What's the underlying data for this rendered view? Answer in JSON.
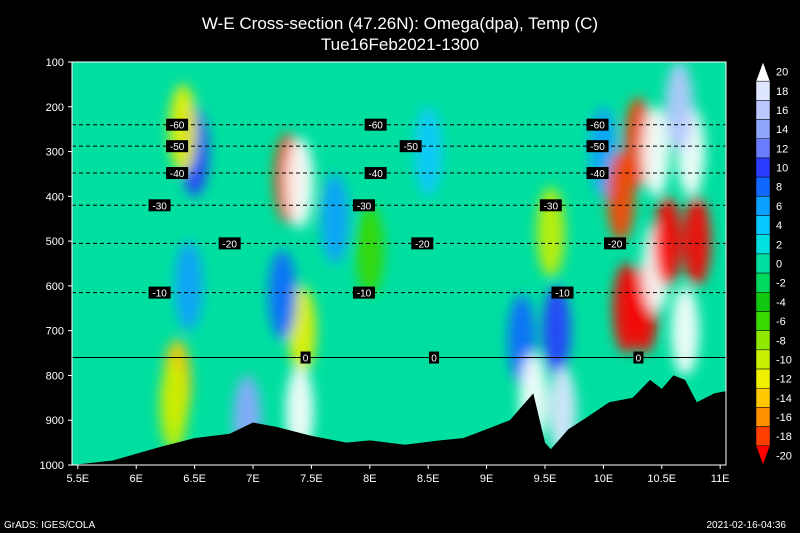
{
  "chart_data": {
    "type": "heatmap",
    "title": "W-E Cross-section (47.26N): Omega(dpa), Temp (C)",
    "subtitle": "Tue16Feb2021-1300",
    "x_ticks": [
      "5.5E",
      "6E",
      "6.5E",
      "7E",
      "7.5E",
      "8E",
      "8.5E",
      "9E",
      "9.5E",
      "10E",
      "10.5E",
      "11E"
    ],
    "x_range": [
      5.45,
      11.05
    ],
    "y_ticks": [
      "100",
      "200",
      "300",
      "400",
      "500",
      "600",
      "700",
      "800",
      "900",
      "1000"
    ],
    "y_range": [
      1000,
      100
    ],
    "colorbar": {
      "levels": [
        "20",
        "18",
        "16",
        "14",
        "12",
        "10",
        "8",
        "6",
        "4",
        "2",
        "0",
        "-2",
        "-4",
        "-6",
        "-8",
        "-10",
        "-12",
        "-14",
        "-16",
        "-18",
        "-20"
      ],
      "colors": [
        "#ffffff",
        "#dfe6ff",
        "#bac8ff",
        "#8fa6ff",
        "#6a7dff",
        "#2a3bff",
        "#1068ff",
        "#0aa0ff",
        "#08c8ff",
        "#00e0e0",
        "#00dfa0",
        "#00d860",
        "#10c810",
        "#38d800",
        "#90e800",
        "#c8f000",
        "#f0f000",
        "#ffc800",
        "#ff9000",
        "#ff4000",
        "#ff0000"
      ]
    },
    "temperature_contours": [
      {
        "label": "-60",
        "p": 240,
        "label_x": [
          6.35,
          8.05,
          9.95
        ]
      },
      {
        "label": "-50",
        "p": 288,
        "label_x": [
          6.35,
          8.35,
          9.95
        ]
      },
      {
        "label": "-40",
        "p": 348,
        "label_x": [
          6.35,
          8.05,
          9.95
        ]
      },
      {
        "label": "-30",
        "p": 420,
        "label_x": [
          6.2,
          7.95,
          9.55
        ]
      },
      {
        "label": "-20",
        "p": 505,
        "label_x": [
          6.8,
          8.45,
          10.1
        ]
      },
      {
        "label": "-10",
        "p": 615,
        "label_x": [
          6.2,
          7.95,
          9.65
        ]
      },
      {
        "label": "0",
        "p": 760,
        "label_x": [
          7.45,
          8.55,
          10.3
        ]
      }
    ],
    "omega_cells": [
      {
        "x": 6.35,
        "p": 820,
        "v": -14
      },
      {
        "x": 6.32,
        "p": 870,
        "v": -10
      },
      {
        "x": 6.45,
        "p": 600,
        "v": 6
      },
      {
        "x": 6.5,
        "p": 300,
        "v": 10
      },
      {
        "x": 6.4,
        "p": 250,
        "v": -12
      },
      {
        "x": 6.95,
        "p": 900,
        "v": 14
      },
      {
        "x": 7.3,
        "p": 360,
        "v": -18
      },
      {
        "x": 7.4,
        "p": 370,
        "v": 20
      },
      {
        "x": 7.42,
        "p": 700,
        "v": -12
      },
      {
        "x": 7.4,
        "p": 880,
        "v": 20
      },
      {
        "x": 7.25,
        "p": 620,
        "v": 8
      },
      {
        "x": 7.7,
        "p": 450,
        "v": 6
      },
      {
        "x": 8.0,
        "p": 520,
        "v": -6
      },
      {
        "x": 8.5,
        "p": 300,
        "v": 4
      },
      {
        "x": 9.3,
        "p": 720,
        "v": 8
      },
      {
        "x": 9.4,
        "p": 850,
        "v": 20
      },
      {
        "x": 9.55,
        "p": 480,
        "v": -10
      },
      {
        "x": 9.6,
        "p": 700,
        "v": 10
      },
      {
        "x": 9.65,
        "p": 880,
        "v": 18
      },
      {
        "x": 10.0,
        "p": 300,
        "v": 6
      },
      {
        "x": 10.15,
        "p": 400,
        "v": -18
      },
      {
        "x": 10.2,
        "p": 650,
        "v": -20
      },
      {
        "x": 10.35,
        "p": 650,
        "v": -20
      },
      {
        "x": 10.3,
        "p": 280,
        "v": -18
      },
      {
        "x": 10.45,
        "p": 300,
        "v": 20
      },
      {
        "x": 10.45,
        "p": 560,
        "v": 20
      },
      {
        "x": 10.55,
        "p": 500,
        "v": -20
      },
      {
        "x": 10.75,
        "p": 300,
        "v": 20
      },
      {
        "x": 10.8,
        "p": 500,
        "v": -20
      },
      {
        "x": 10.7,
        "p": 700,
        "v": 20
      },
      {
        "x": 10.65,
        "p": 200,
        "v": 16
      }
    ],
    "terrain": [
      [
        5.45,
        1000
      ],
      [
        5.8,
        990
      ],
      [
        6.0,
        975
      ],
      [
        6.2,
        960
      ],
      [
        6.5,
        940
      ],
      [
        6.8,
        930
      ],
      [
        7.0,
        905
      ],
      [
        7.2,
        915
      ],
      [
        7.5,
        935
      ],
      [
        7.8,
        950
      ],
      [
        8.0,
        945
      ],
      [
        8.3,
        955
      ],
      [
        8.6,
        945
      ],
      [
        8.8,
        940
      ],
      [
        9.0,
        920
      ],
      [
        9.2,
        900
      ],
      [
        9.3,
        870
      ],
      [
        9.4,
        840
      ],
      [
        9.5,
        950
      ],
      [
        9.55,
        965
      ],
      [
        9.7,
        920
      ],
      [
        9.85,
        895
      ],
      [
        10.05,
        860
      ],
      [
        10.25,
        850
      ],
      [
        10.4,
        810
      ],
      [
        10.5,
        830
      ],
      [
        10.6,
        800
      ],
      [
        10.7,
        810
      ],
      [
        10.8,
        860
      ],
      [
        10.95,
        840
      ],
      [
        11.05,
        835
      ]
    ]
  },
  "footer": {
    "left": "GrADS: IGES/COLA",
    "right": "2021-02-16-04:36"
  }
}
